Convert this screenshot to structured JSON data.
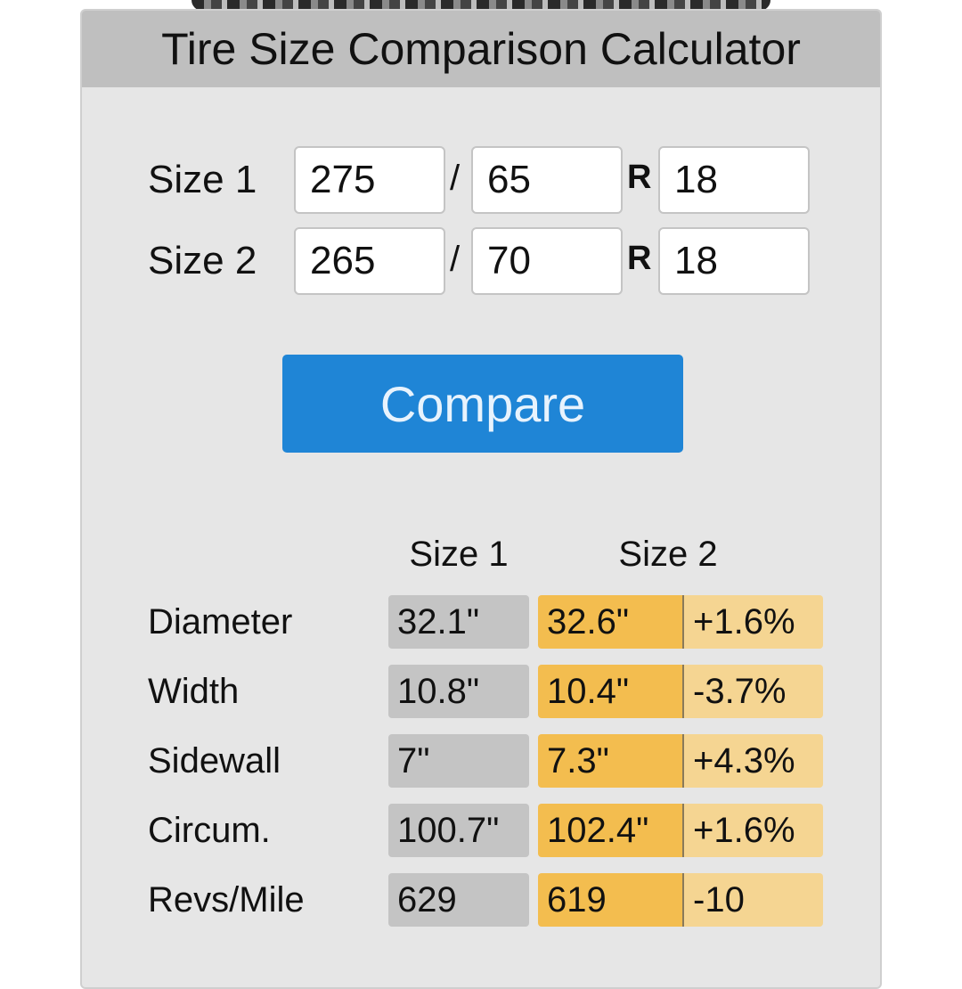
{
  "calculator": {
    "title": "Tire Size Comparison Calculator",
    "size1": {
      "label": "Size 1",
      "width": "275",
      "aspect": "65",
      "rim": "18"
    },
    "size2": {
      "label": "Size 2",
      "width": "265",
      "aspect": "70",
      "rim": "18"
    },
    "slash": "/",
    "rim_prefix": "R",
    "compare_label": "Compare"
  },
  "results": {
    "headers": {
      "size1": "Size 1",
      "size2": "Size 2"
    },
    "rows": [
      {
        "label": "Diameter",
        "size1": "32.1\"",
        "size2": "32.6\"",
        "diff": "+1.6%"
      },
      {
        "label": "Width",
        "size1": "10.8\"",
        "size2": "10.4\"",
        "diff": "-3.7%"
      },
      {
        "label": "Sidewall",
        "size1": "7\"",
        "size2": "7.3\"",
        "diff": "+4.3%"
      },
      {
        "label": "Circum.",
        "size1": "100.7\"",
        "size2": "102.4\"",
        "diff": "+1.6%"
      },
      {
        "label": "Revs/Mile",
        "size1": "629",
        "size2": "619",
        "diff": "-10"
      }
    ]
  },
  "colors": {
    "header_bg": "#bfbfbf",
    "card_bg": "#e6e6e6",
    "button_bg": "#1f85d6",
    "size1_cell": "#c4c4c4",
    "size2_cell": "#f3bd4f",
    "diff_cell": "#f5d592"
  }
}
